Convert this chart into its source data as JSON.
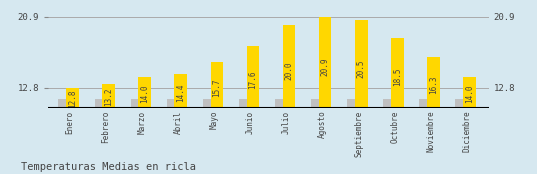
{
  "categories": [
    "Enero",
    "Febrero",
    "Marzo",
    "Abril",
    "Mayo",
    "Junio",
    "Julio",
    "Agosto",
    "Septiembre",
    "Octubre",
    "Noviembre",
    "Diciembre"
  ],
  "values": [
    12.8,
    13.2,
    14.0,
    14.4,
    15.7,
    17.6,
    20.0,
    20.9,
    20.5,
    18.5,
    16.3,
    14.0
  ],
  "gray_values": [
    11.5,
    11.5,
    11.5,
    11.5,
    11.5,
    11.5,
    11.5,
    11.5,
    11.5,
    11.5,
    11.5,
    11.5
  ],
  "bar_color_yellow": "#FFD700",
  "bar_color_gray": "#C0C0C0",
  "background_color": "#D6E8F0",
  "title": "Temperaturas Medias en ricla",
  "ylim_min": 10.5,
  "ylim_max": 22.2,
  "yticks": [
    12.8,
    20.9
  ],
  "ytick_labels": [
    "12.8",
    "20.9"
  ],
  "grid_color": "#AAAAAA",
  "label_fontsize": 6.5,
  "value_fontsize": 5.5,
  "title_fontsize": 7.5,
  "axis_label_fontsize": 5.5,
  "bar_bottom": 10.5
}
